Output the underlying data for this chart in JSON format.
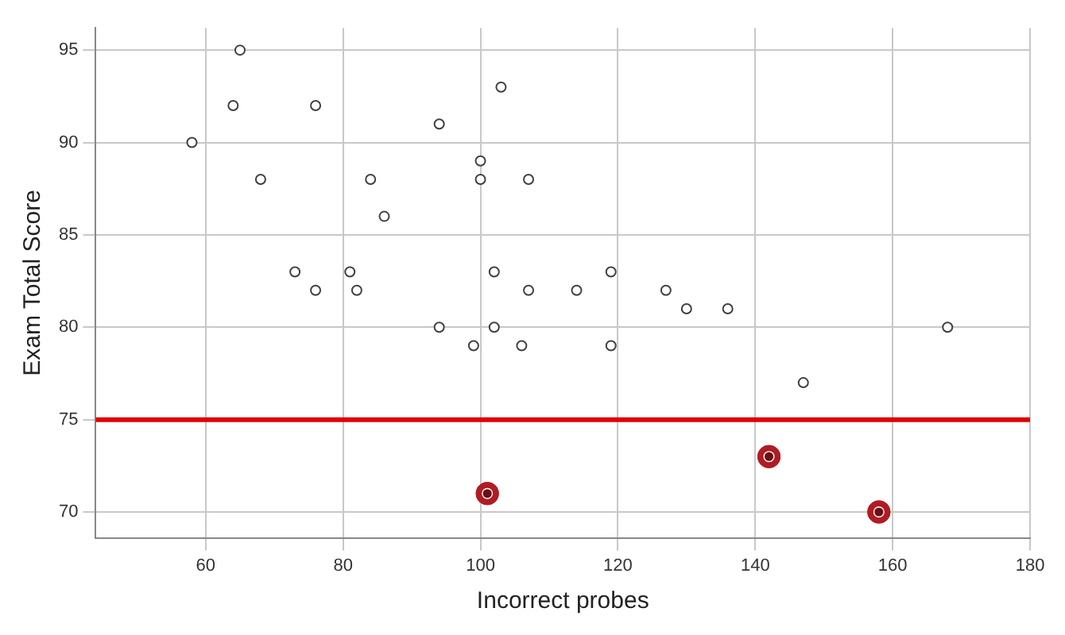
{
  "chart_data": {
    "type": "scatter",
    "xlabel": "Incorrect probes",
    "ylabel": "Exam Total Score",
    "xlim": [
      44,
      180
    ],
    "ylim": [
      68.6,
      96.2
    ],
    "xticks": [
      60,
      80,
      100,
      120,
      140,
      160,
      180
    ],
    "yticks": [
      70,
      75,
      80,
      85,
      90,
      95
    ],
    "grid": true,
    "marker": "circle",
    "series": [
      {
        "color": "#404040",
        "x": [
          58,
          64,
          65,
          68,
          76,
          73,
          76,
          81,
          82,
          84,
          86,
          94,
          94,
          99,
          100,
          100,
          102,
          102,
          103,
          107,
          107,
          106,
          114,
          119,
          119,
          127,
          130,
          136,
          147,
          168
        ],
        "values": [
          90,
          92,
          95,
          88,
          92,
          83,
          82,
          83,
          82,
          88,
          86,
          91,
          80,
          79,
          89,
          88,
          83,
          80,
          93,
          88,
          82,
          79,
          82,
          83,
          79,
          82,
          81,
          81,
          77,
          80
        ]
      },
      {
        "color": "#b01c24",
        "x": [
          101,
          142,
          158
        ],
        "values": [
          71,
          73,
          70
        ]
      }
    ],
    "ref_lines": [
      {
        "axis": "y",
        "value": 75,
        "color": "#e00000"
      }
    ]
  }
}
